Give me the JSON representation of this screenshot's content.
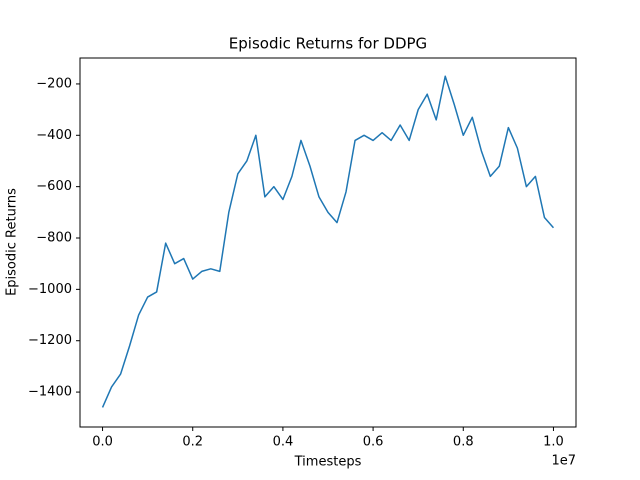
{
  "chart_data": {
    "type": "line",
    "title": "Episodic Returns for DDPG",
    "x_label": "Timesteps",
    "y_label": "Episodic Returns",
    "x_offset_label": "1e7",
    "x": [
      0,
      200000,
      400000,
      600000,
      800000,
      1000000,
      1200000,
      1400000,
      1600000,
      1800000,
      2000000,
      2200000,
      2400000,
      2600000,
      2800000,
      3000000,
      3200000,
      3400000,
      3600000,
      3800000,
      4000000,
      4200000,
      4400000,
      4600000,
      4800000,
      5000000,
      5200000,
      5400000,
      5600000,
      5800000,
      6000000,
      6200000,
      6400000,
      6600000,
      6800000,
      7000000,
      7200000,
      7400000,
      7600000,
      7800000,
      8000000,
      8200000,
      8400000,
      8600000,
      8800000,
      9000000,
      9200000,
      9400000,
      9600000,
      9800000,
      10000000
    ],
    "series": [
      {
        "name": "DDPG",
        "color": "#1f77b4",
        "values": [
          -1460,
          -1380,
          -1330,
          -1220,
          -1100,
          -1030,
          -1010,
          -820,
          -900,
          -880,
          -960,
          -930,
          -920,
          -930,
          -700,
          -550,
          -500,
          -400,
          -640,
          -600,
          -650,
          -560,
          -420,
          -520,
          -640,
          -700,
          -740,
          -620,
          -420,
          -400,
          -420,
          -390,
          -420,
          -360,
          -420,
          -300,
          -240,
          -340,
          -170,
          -280,
          -400,
          -330,
          -460,
          -560,
          -520,
          -370,
          -450,
          -600,
          -560,
          -720,
          -760
        ]
      }
    ],
    "xlim": [
      -500000,
      10500000
    ],
    "ylim": [
      -1536,
      -99
    ],
    "xticks": [
      {
        "value": 0,
        "label": "0.0"
      },
      {
        "value": 2000000,
        "label": "0.2"
      },
      {
        "value": 4000000,
        "label": "0.4"
      },
      {
        "value": 6000000,
        "label": "0.6"
      },
      {
        "value": 8000000,
        "label": "0.8"
      },
      {
        "value": 10000000,
        "label": "1.0"
      }
    ],
    "yticks": [
      {
        "value": -1400,
        "label": "−1400"
      },
      {
        "value": -1200,
        "label": "−1200"
      },
      {
        "value": -1000,
        "label": "−1000"
      },
      {
        "value": -800,
        "label": "−800"
      },
      {
        "value": -600,
        "label": "−600"
      },
      {
        "value": -400,
        "label": "−400"
      },
      {
        "value": -200,
        "label": "−200"
      }
    ],
    "grid": false
  }
}
